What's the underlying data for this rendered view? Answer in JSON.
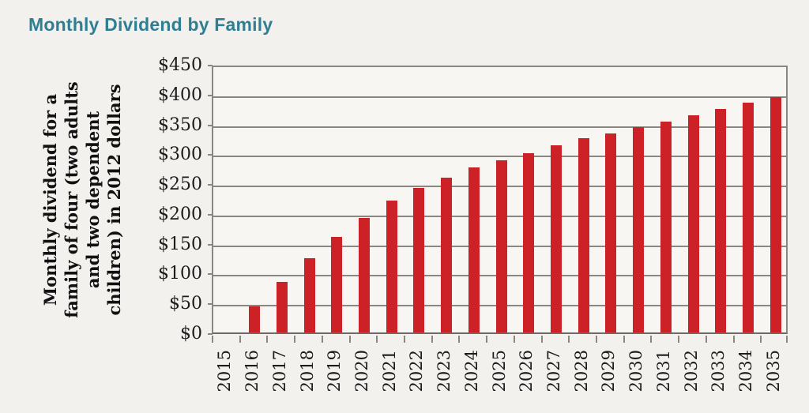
{
  "header": {
    "title": "Monthly Dividend by Family",
    "title_color": "#2f7e93"
  },
  "chart_data": {
    "type": "bar",
    "title": "Monthly Dividend by Family",
    "categories": [
      "2015",
      "2016",
      "2017",
      "2018",
      "2019",
      "2020",
      "2021",
      "2022",
      "2023",
      "2024",
      "2025",
      "2026",
      "2027",
      "2028",
      "2029",
      "2030",
      "2031",
      "2032",
      "2033",
      "2034",
      "2035"
    ],
    "values": [
      0,
      44,
      85,
      125,
      160,
      192,
      221,
      242,
      259,
      276,
      288,
      301,
      314,
      325,
      334,
      344,
      353,
      364,
      375,
      385,
      395
    ],
    "ylabel_lines": [
      "Monthly dividend for a",
      "family of four (two adults",
      "and two dependent",
      "children) in 2012 dollars"
    ],
    "ytick_prefix": "$",
    "ylim": [
      0,
      450
    ],
    "ytick_step": 50,
    "grid": true,
    "legend": false,
    "bar_color": "#cc2127",
    "gridline_color": "#8a8680",
    "plot_bg": "#f7f6f3",
    "page_bg": "#f2f1ee",
    "text_color": "#1c1c1c"
  }
}
